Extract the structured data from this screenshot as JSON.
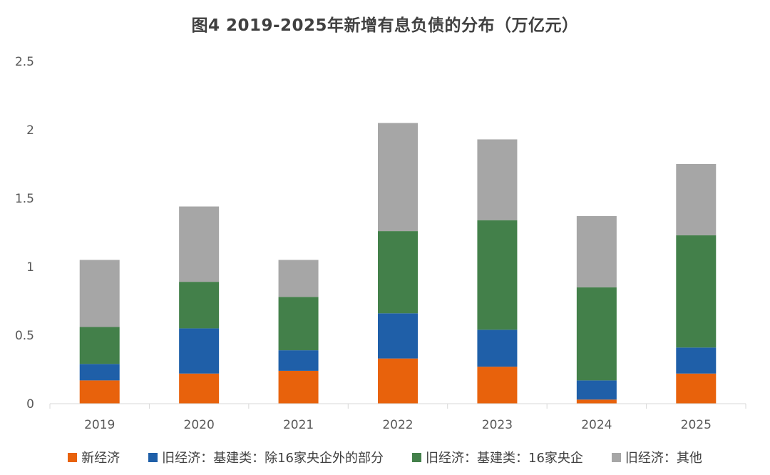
{
  "chart_data": {
    "type": "bar",
    "stacked": true,
    "title": "图4  2019-2025年新增有息负债的分布（万亿元）",
    "categories": [
      "2019",
      "2020",
      "2021",
      "2022",
      "2023",
      "2024",
      "2025"
    ],
    "ylim": [
      0,
      2.5
    ],
    "yticks": [
      "0",
      "0.5",
      "1",
      "1.5",
      "2",
      "2.5"
    ],
    "ytick_values": [
      0,
      0.5,
      1,
      1.5,
      2,
      2.5
    ],
    "grid": false,
    "legend_position": "bottom",
    "series": [
      {
        "name": "新经济",
        "color": "#E8620C",
        "values": [
          0.17,
          0.22,
          0.24,
          0.33,
          0.27,
          0.03,
          0.22
        ]
      },
      {
        "name": "旧经济：基建类：除16家央企外的部分",
        "color": "#1F5FA8",
        "values": [
          0.12,
          0.33,
          0.15,
          0.33,
          0.27,
          0.14,
          0.19
        ]
      },
      {
        "name": "旧经济：基建类：16家央企",
        "color": "#43804A",
        "values": [
          0.27,
          0.34,
          0.39,
          0.6,
          0.8,
          0.68,
          0.82
        ]
      },
      {
        "name": "旧经济：其他",
        "color": "#A6A6A6",
        "values": [
          0.49,
          0.55,
          0.27,
          0.79,
          0.59,
          0.52,
          0.52
        ]
      }
    ]
  }
}
